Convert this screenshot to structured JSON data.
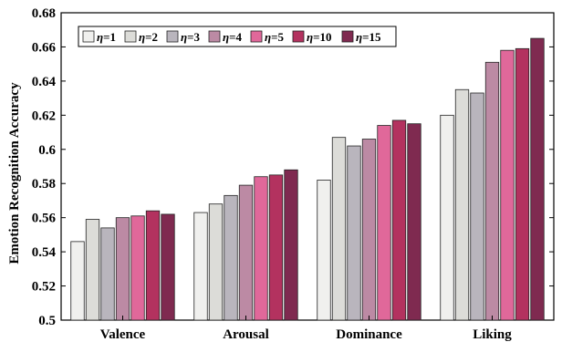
{
  "chart_data": {
    "type": "bar",
    "ylabel": "Emotion Recognition Accuracy",
    "xlabel": "",
    "ylim": [
      0.5,
      0.68
    ],
    "yticks": [
      0.5,
      0.52,
      0.54,
      0.56,
      0.58,
      0.6,
      0.62,
      0.64,
      0.66,
      0.68
    ],
    "ytick_labels": [
      "0.5",
      "0.52",
      "0.54",
      "0.56",
      "0.58",
      "0.6",
      "0.62",
      "0.64",
      "0.66",
      "0.68"
    ],
    "categories": [
      "Valence",
      "Arousal",
      "Dominance",
      "Liking"
    ],
    "legend_position": "top-left",
    "grid": false,
    "series": [
      {
        "name": "η=1",
        "symbol": "η",
        "suffix": "=1",
        "color": "#f0f0ee",
        "values": [
          0.546,
          0.563,
          0.582,
          0.62
        ]
      },
      {
        "name": "η=2",
        "symbol": "η",
        "suffix": "=2",
        "color": "#dcdcd8",
        "values": [
          0.559,
          0.568,
          0.607,
          0.635
        ]
      },
      {
        "name": "η=3",
        "symbol": "η",
        "suffix": "=3",
        "color": "#b9b5bd",
        "values": [
          0.554,
          0.573,
          0.602,
          0.633
        ]
      },
      {
        "name": "η=4",
        "symbol": "η",
        "suffix": "=4",
        "color": "#bc8aa4",
        "values": [
          0.56,
          0.579,
          0.606,
          0.651
        ]
      },
      {
        "name": "η=5",
        "symbol": "η",
        "suffix": "=5",
        "color": "#e0689a",
        "values": [
          0.561,
          0.584,
          0.614,
          0.658
        ]
      },
      {
        "name": "η=10",
        "symbol": "η",
        "suffix": "=10",
        "color": "#b3325f",
        "values": [
          0.564,
          0.585,
          0.617,
          0.659
        ]
      },
      {
        "name": "η=15",
        "symbol": "η",
        "suffix": "=15",
        "color": "#7f2a50",
        "values": [
          0.562,
          0.588,
          0.615,
          0.665
        ]
      }
    ]
  }
}
